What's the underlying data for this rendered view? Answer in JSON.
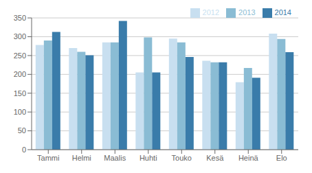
{
  "chart_data": {
    "type": "bar",
    "categories": [
      "Tammi",
      "Helmi",
      "Maalis",
      "Huhti",
      "Touko",
      "Kesä",
      "Heinä",
      "Elo"
    ],
    "series": [
      {
        "name": "2012",
        "color": "#c8dff0",
        "values": [
          278,
          270,
          285,
          205,
          295,
          236,
          179,
          308
        ]
      },
      {
        "name": "2013",
        "color": "#8abcd4",
        "values": [
          290,
          260,
          285,
          298,
          285,
          232,
          217,
          294
        ]
      },
      {
        "name": "2014",
        "color": "#3a7caa",
        "values": [
          313,
          251,
          342,
          205,
          246,
          232,
          191,
          259
        ]
      }
    ],
    "ylim": [
      0,
      350
    ],
    "yticks": [
      0,
      50,
      100,
      150,
      200,
      250,
      300,
      350
    ],
    "grid": true,
    "legend": "upper right"
  }
}
